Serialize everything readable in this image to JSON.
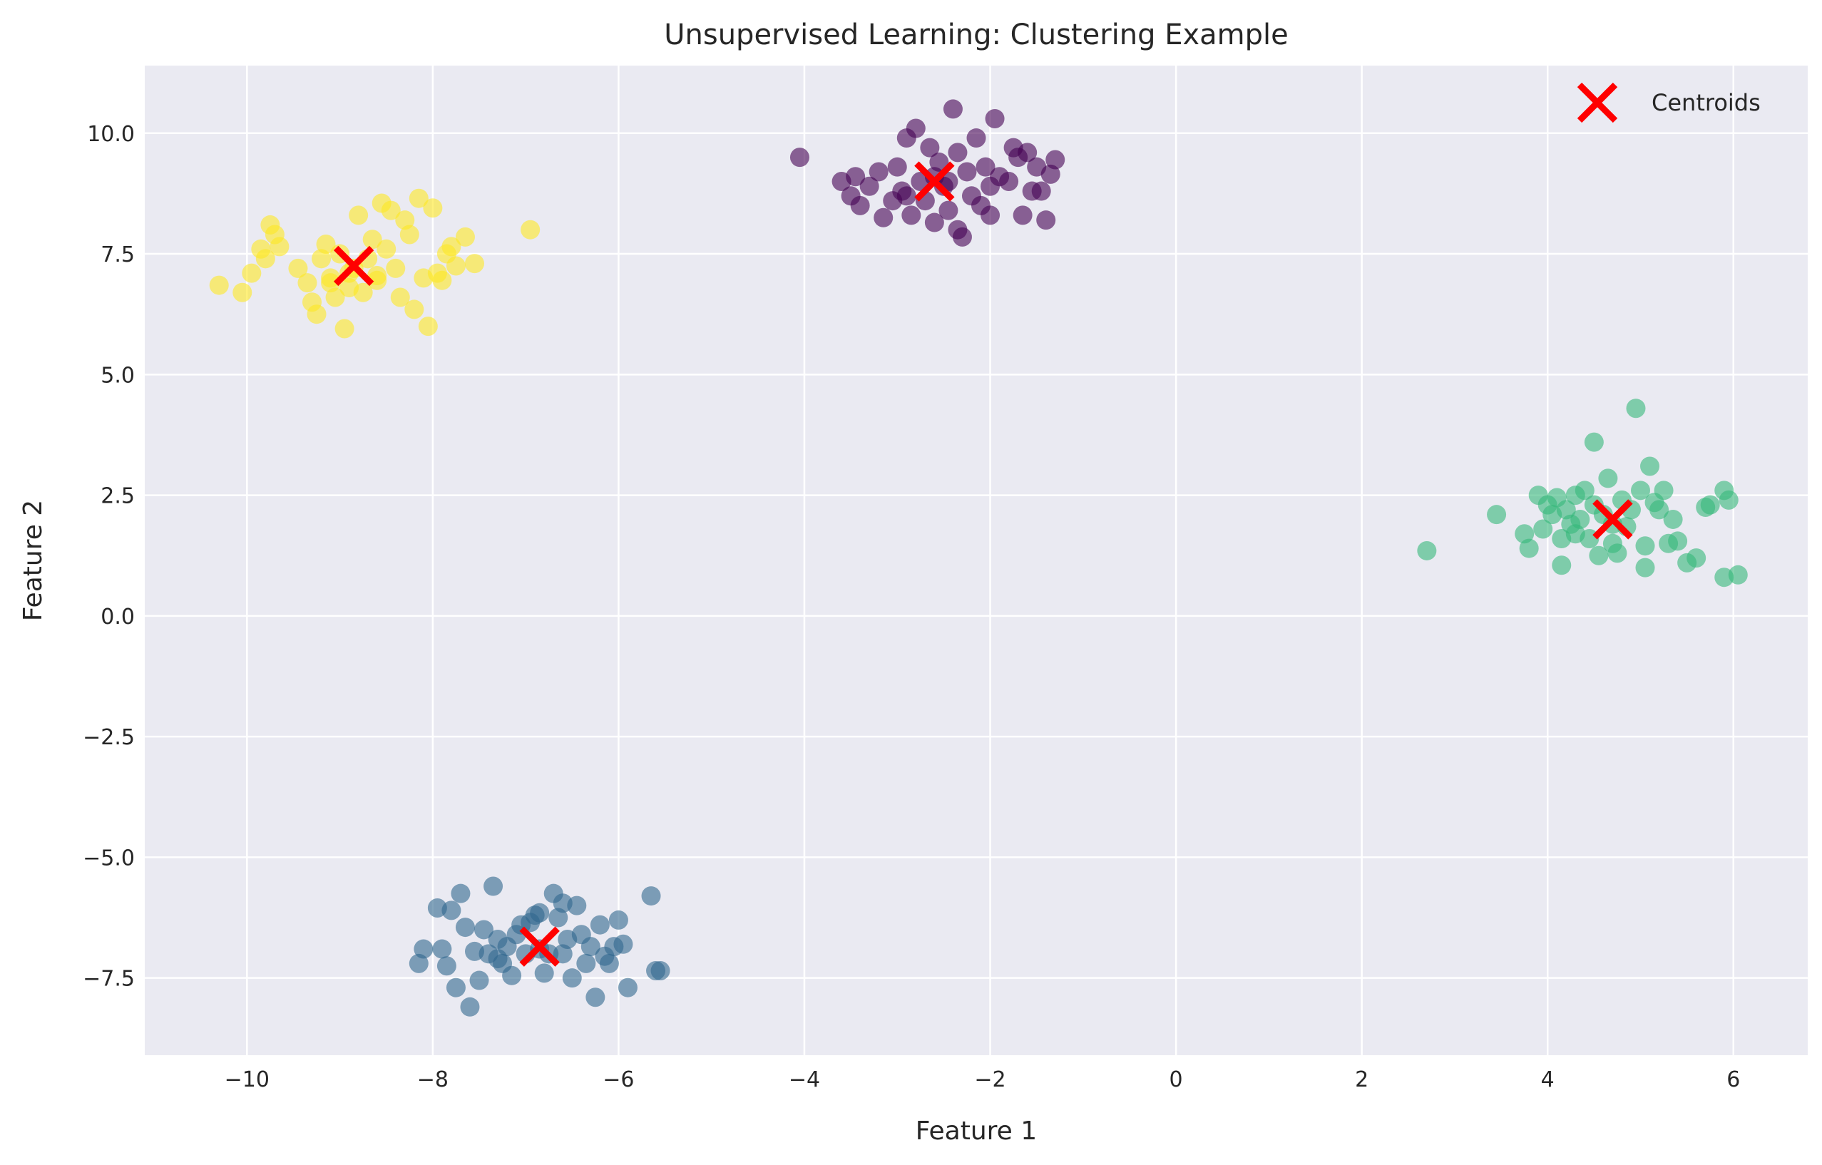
{
  "chart_data": {
    "type": "scatter",
    "title": "Unsupervised Learning: Clustering Example",
    "xlabel": "Feature 1",
    "ylabel": "Feature 2",
    "xlim": [
      -11.1,
      6.8
    ],
    "ylim": [
      -9.1,
      11.4
    ],
    "xticks": [
      -10,
      -8,
      -6,
      -4,
      -2,
      0,
      2,
      4,
      6
    ],
    "xtick_labels": [
      "−10",
      "−8",
      "−6",
      "−4",
      "−2",
      "0",
      "2",
      "4",
      "6"
    ],
    "yticks": [
      -7.5,
      -5.0,
      -2.5,
      0.0,
      2.5,
      5.0,
      7.5,
      10.0
    ],
    "ytick_labels": [
      "−7.5",
      "−5.0",
      "−2.5",
      "0.0",
      "2.5",
      "5.0",
      "7.5",
      "10.0"
    ],
    "grid": true,
    "background": "#eaeaf2",
    "legend": {
      "placement": "top-right",
      "entries": [
        "Centroids"
      ]
    },
    "clusters": [
      {
        "color": "#440154",
        "points": [
          [
            -4.05,
            9.5
          ],
          [
            -3.6,
            9.0
          ],
          [
            -3.5,
            8.7
          ],
          [
            -3.45,
            9.1
          ],
          [
            -3.4,
            8.5
          ],
          [
            -3.3,
            8.9
          ],
          [
            -3.2,
            9.2
          ],
          [
            -3.15,
            8.25
          ],
          [
            -3.05,
            8.6
          ],
          [
            -3.0,
            9.3
          ],
          [
            -2.95,
            8.8
          ],
          [
            -2.9,
            9.9
          ],
          [
            -2.85,
            8.3
          ],
          [
            -2.8,
            10.1
          ],
          [
            -2.75,
            9.0
          ],
          [
            -2.7,
            8.6
          ],
          [
            -2.65,
            9.7
          ],
          [
            -2.6,
            8.15
          ],
          [
            -2.55,
            9.4
          ],
          [
            -2.5,
            8.9
          ],
          [
            -2.45,
            8.4
          ],
          [
            -2.4,
            10.5
          ],
          [
            -2.35,
            8.0
          ],
          [
            -2.35,
            9.6
          ],
          [
            -2.3,
            7.85
          ],
          [
            -2.25,
            9.2
          ],
          [
            -2.2,
            8.7
          ],
          [
            -2.15,
            9.9
          ],
          [
            -2.1,
            8.5
          ],
          [
            -2.05,
            9.3
          ],
          [
            -2.0,
            8.9
          ],
          [
            -1.95,
            10.3
          ],
          [
            -1.9,
            9.1
          ],
          [
            -1.8,
            9.0
          ],
          [
            -1.75,
            9.7
          ],
          [
            -1.7,
            9.5
          ],
          [
            -1.65,
            8.3
          ],
          [
            -1.6,
            9.6
          ],
          [
            -1.55,
            8.8
          ],
          [
            -1.5,
            9.3
          ],
          [
            -1.45,
            8.8
          ],
          [
            -1.4,
            8.2
          ],
          [
            -1.35,
            9.15
          ],
          [
            -1.3,
            9.45
          ],
          [
            -2.0,
            8.3
          ],
          [
            -2.6,
            9.1
          ],
          [
            -2.9,
            8.7
          ],
          [
            -2.45,
            9.0
          ]
        ]
      },
      {
        "color": "#31688e",
        "points": [
          [
            -8.15,
            -7.2
          ],
          [
            -8.1,
            -6.9
          ],
          [
            -7.95,
            -6.05
          ],
          [
            -7.9,
            -6.9
          ],
          [
            -7.85,
            -7.25
          ],
          [
            -7.8,
            -6.1
          ],
          [
            -7.75,
            -7.7
          ],
          [
            -7.7,
            -5.75
          ],
          [
            -7.65,
            -6.45
          ],
          [
            -7.6,
            -8.1
          ],
          [
            -7.55,
            -6.95
          ],
          [
            -7.5,
            -7.55
          ],
          [
            -7.45,
            -6.5
          ],
          [
            -7.4,
            -7.0
          ],
          [
            -7.35,
            -5.6
          ],
          [
            -7.3,
            -6.7
          ],
          [
            -7.25,
            -7.2
          ],
          [
            -7.2,
            -6.85
          ],
          [
            -7.15,
            -7.45
          ],
          [
            -7.1,
            -6.6
          ],
          [
            -7.05,
            -6.4
          ],
          [
            -7.0,
            -7.0
          ],
          [
            -6.95,
            -6.35
          ],
          [
            -6.9,
            -6.2
          ],
          [
            -6.85,
            -6.9
          ],
          [
            -6.8,
            -7.4
          ],
          [
            -6.75,
            -7.0
          ],
          [
            -6.7,
            -5.75
          ],
          [
            -6.65,
            -6.25
          ],
          [
            -6.6,
            -5.95
          ],
          [
            -6.55,
            -6.7
          ],
          [
            -6.5,
            -7.5
          ],
          [
            -6.45,
            -6.0
          ],
          [
            -6.4,
            -6.6
          ],
          [
            -6.35,
            -7.2
          ],
          [
            -6.3,
            -6.85
          ],
          [
            -6.25,
            -7.9
          ],
          [
            -6.2,
            -6.4
          ],
          [
            -6.15,
            -7.05
          ],
          [
            -6.1,
            -7.2
          ],
          [
            -6.05,
            -6.85
          ],
          [
            -6.0,
            -6.3
          ],
          [
            -5.95,
            -6.8
          ],
          [
            -5.9,
            -7.7
          ],
          [
            -5.65,
            -5.8
          ],
          [
            -5.6,
            -7.35
          ],
          [
            -5.55,
            -7.35
          ],
          [
            -6.85,
            -6.15
          ],
          [
            -6.6,
            -7.0
          ],
          [
            -7.3,
            -7.1
          ]
        ]
      },
      {
        "color": "#35b779",
        "points": [
          [
            2.7,
            1.35
          ],
          [
            3.45,
            2.1
          ],
          [
            3.75,
            1.7
          ],
          [
            3.8,
            1.4
          ],
          [
            3.9,
            2.5
          ],
          [
            3.95,
            1.8
          ],
          [
            4.0,
            2.3
          ],
          [
            4.05,
            2.1
          ],
          [
            4.1,
            2.45
          ],
          [
            4.15,
            1.05
          ],
          [
            4.15,
            1.6
          ],
          [
            4.2,
            2.2
          ],
          [
            4.25,
            1.9
          ],
          [
            4.3,
            2.5
          ],
          [
            4.35,
            2.0
          ],
          [
            4.4,
            2.6
          ],
          [
            4.45,
            1.6
          ],
          [
            4.5,
            3.6
          ],
          [
            4.5,
            2.3
          ],
          [
            4.55,
            1.25
          ],
          [
            4.6,
            2.1
          ],
          [
            4.65,
            2.85
          ],
          [
            4.7,
            1.5
          ],
          [
            4.75,
            1.3
          ],
          [
            4.8,
            2.4
          ],
          [
            4.85,
            1.85
          ],
          [
            4.9,
            2.2
          ],
          [
            4.95,
            4.3
          ],
          [
            5.0,
            2.6
          ],
          [
            5.05,
            1.45
          ],
          [
            5.05,
            1.0
          ],
          [
            5.1,
            3.1
          ],
          [
            5.15,
            2.35
          ],
          [
            5.2,
            2.2
          ],
          [
            5.25,
            2.6
          ],
          [
            5.3,
            1.5
          ],
          [
            5.35,
            2.0
          ],
          [
            5.4,
            1.55
          ],
          [
            5.5,
            1.1
          ],
          [
            5.6,
            1.2
          ],
          [
            5.7,
            2.25
          ],
          [
            5.75,
            2.3
          ],
          [
            5.9,
            0.8
          ],
          [
            5.9,
            2.6
          ],
          [
            5.95,
            2.4
          ],
          [
            6.05,
            0.85
          ],
          [
            4.3,
            1.7
          ],
          [
            4.7,
            1.9
          ]
        ]
      },
      {
        "color": "#fde725",
        "points": [
          [
            -10.3,
            6.85
          ],
          [
            -10.05,
            6.7
          ],
          [
            -9.95,
            7.1
          ],
          [
            -9.85,
            7.6
          ],
          [
            -9.8,
            7.4
          ],
          [
            -9.75,
            8.1
          ],
          [
            -9.7,
            7.9
          ],
          [
            -9.65,
            7.65
          ],
          [
            -9.45,
            7.2
          ],
          [
            -9.35,
            6.9
          ],
          [
            -9.3,
            6.5
          ],
          [
            -9.25,
            6.25
          ],
          [
            -9.2,
            7.4
          ],
          [
            -9.15,
            7.7
          ],
          [
            -9.1,
            7.0
          ],
          [
            -9.05,
            6.6
          ],
          [
            -9.0,
            7.5
          ],
          [
            -8.95,
            5.95
          ],
          [
            -8.9,
            6.8
          ],
          [
            -8.85,
            7.2
          ],
          [
            -8.8,
            8.3
          ],
          [
            -8.75,
            6.7
          ],
          [
            -8.7,
            7.4
          ],
          [
            -8.65,
            7.8
          ],
          [
            -8.6,
            6.95
          ],
          [
            -8.55,
            8.55
          ],
          [
            -8.5,
            7.6
          ],
          [
            -8.45,
            8.4
          ],
          [
            -8.4,
            7.2
          ],
          [
            -8.35,
            6.6
          ],
          [
            -8.3,
            8.2
          ],
          [
            -8.25,
            7.9
          ],
          [
            -8.2,
            6.35
          ],
          [
            -8.15,
            8.65
          ],
          [
            -8.1,
            7.0
          ],
          [
            -8.05,
            6.0
          ],
          [
            -8.0,
            8.45
          ],
          [
            -7.95,
            7.1
          ],
          [
            -7.9,
            6.95
          ],
          [
            -7.85,
            7.5
          ],
          [
            -7.8,
            7.65
          ],
          [
            -7.75,
            7.25
          ],
          [
            -7.65,
            7.85
          ],
          [
            -7.55,
            7.3
          ],
          [
            -6.95,
            8.0
          ],
          [
            -9.1,
            6.9
          ],
          [
            -8.9,
            7.1
          ],
          [
            -8.6,
            7.05
          ]
        ]
      }
    ],
    "centroids": {
      "label": "Centroids",
      "color": "#ff0000",
      "points": [
        [
          -2.6,
          9.0
        ],
        [
          -6.85,
          -6.85
        ],
        [
          4.7,
          2.0
        ],
        [
          -8.85,
          7.25
        ]
      ]
    }
  }
}
